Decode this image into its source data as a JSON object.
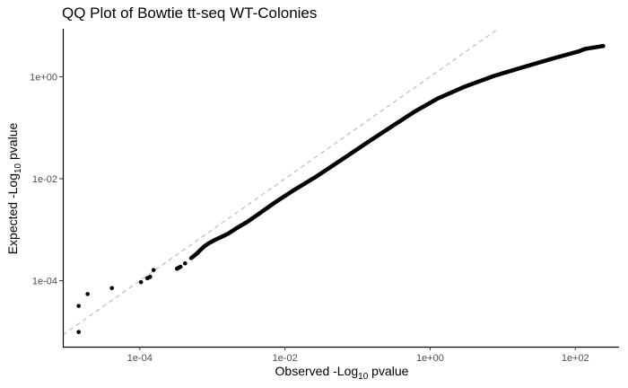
{
  "chart_data": {
    "type": "scatter",
    "title": "QQ Plot of Bowtie tt-seq WT-Colonies",
    "xlabel": {
      "main": "Observed -Log",
      "sub": "10",
      "tail": " pvalue"
    },
    "ylabel": {
      "main": "Expected -Log",
      "sub": "10",
      "tail": " pvalue"
    },
    "x_scale": "log10",
    "y_scale": "log10",
    "xlim": [
      8.7e-06,
      400
    ],
    "ylim": [
      5.1e-06,
      8.7
    ],
    "x_ticks": [
      {
        "value": 0.0001,
        "label": "1e-04"
      },
      {
        "value": 0.01,
        "label": "1e-02"
      },
      {
        "value": 1,
        "label": "1e+00"
      },
      {
        "value": 100,
        "label": "1e+02"
      }
    ],
    "y_ticks": [
      {
        "value": 0.0001,
        "label": "1e-04"
      },
      {
        "value": 0.01,
        "label": "1e-02"
      },
      {
        "value": 1,
        "label": "1e+00"
      }
    ],
    "grid": false,
    "reference_line": {
      "type": "y=x",
      "style": "dashed",
      "color": "#bdbdbd"
    },
    "point_color": "#000000",
    "points": [
      [
        1.44e-05,
        9.9e-06
      ],
      [
        1.44e-05,
        3.21e-05
      ],
      [
        1.91e-05,
        5.48e-05
      ],
      [
        4.13e-05,
        7.17e-05
      ],
      [
        0.000104,
        9.39e-05
      ],
      [
        0.000127,
        0.000112
      ],
      [
        0.000139,
        0.000119
      ],
      [
        0.000155,
        0.000162
      ],
      [
        0.000325,
        0.000172
      ],
      [
        0.000364,
        0.000188
      ],
      [
        0.000421,
        0.000219
      ],
      [
        0.000511,
        0.000278
      ],
      [
        0.000597,
        0.000331
      ],
      [
        0.000676,
        0.000394
      ],
      [
        0.000765,
        0.000465
      ],
      [
        0.000893,
        0.000543
      ],
      [
        0.00107,
        0.000625
      ],
      [
        0.00131,
        0.000714
      ],
      [
        0.00165,
        0.000838
      ],
      [
        0.00213,
        0.00106
      ],
      [
        0.00301,
        0.00142
      ],
      [
        0.00444,
        0.00208
      ],
      [
        0.00725,
        0.00341
      ],
      [
        0.0129,
        0.00582
      ],
      [
        0.0267,
        0.0109
      ],
      [
        0.064,
        0.0249
      ],
      [
        0.145,
        0.0543
      ],
      [
        0.3,
        0.107
      ],
      [
        0.603,
        0.204
      ],
      [
        1.27,
        0.373
      ],
      [
        2.99,
        0.637
      ],
      [
        7.67,
        1.04
      ],
      [
        20.8,
        1.59
      ],
      [
        52.8,
        2.34
      ],
      [
        98.2,
        2.98
      ],
      [
        110,
        3.11
      ],
      [
        136,
        3.5
      ],
      [
        242,
        3.99
      ]
    ]
  }
}
